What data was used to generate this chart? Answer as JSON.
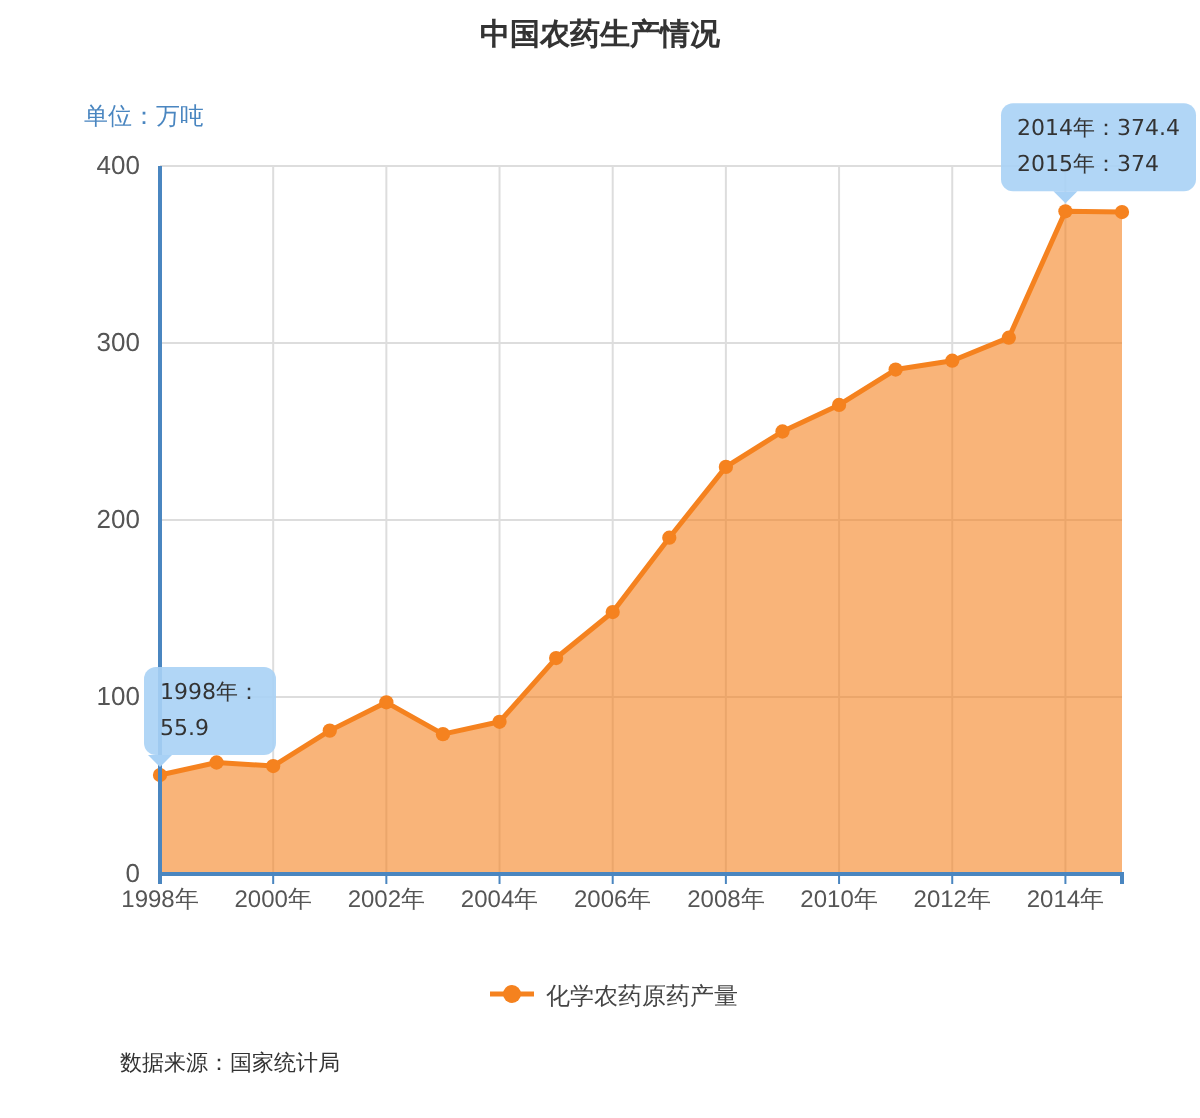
{
  "chart_data": {
    "type": "area",
    "title": "中国农药生产情况",
    "ylabel": "单位：万吨",
    "x": [
      1998,
      1999,
      2000,
      2001,
      2002,
      2003,
      2004,
      2005,
      2006,
      2007,
      2008,
      2009,
      2010,
      2011,
      2012,
      2013,
      2014,
      2015
    ],
    "series": [
      {
        "name": "化学农药原药产量",
        "color": "#f5821f",
        "values": [
          55.9,
          63,
          61,
          81,
          97,
          79,
          86,
          122,
          148,
          190,
          230,
          250,
          265,
          285,
          290,
          303,
          374.4,
          374
        ]
      }
    ],
    "xlim": [
      1998,
      2015
    ],
    "xticks": [
      {
        "value": 1998,
        "label": "1998年"
      },
      {
        "value": 2000,
        "label": "2000年"
      },
      {
        "value": 2002,
        "label": "2002年"
      },
      {
        "value": 2004,
        "label": "2004年"
      },
      {
        "value": 2006,
        "label": "2006年"
      },
      {
        "value": 2008,
        "label": "2008年"
      },
      {
        "value": 2010,
        "label": "2010年"
      },
      {
        "value": 2012,
        "label": "2012年"
      },
      {
        "value": 2014,
        "label": "2014年"
      }
    ],
    "ylim": [
      0,
      400
    ],
    "yticks": [
      0,
      100,
      200,
      300,
      400
    ],
    "grid": true,
    "legend": "bottom",
    "marker": "circle",
    "annotations": [
      {
        "text": "1998年：\n55.9",
        "x": 1998,
        "y": 55.9
      },
      {
        "text": "2014年：374.4\n2015年：374",
        "x": 2014,
        "y": 374.4
      },
      "数据来源：国家统计局"
    ]
  }
}
